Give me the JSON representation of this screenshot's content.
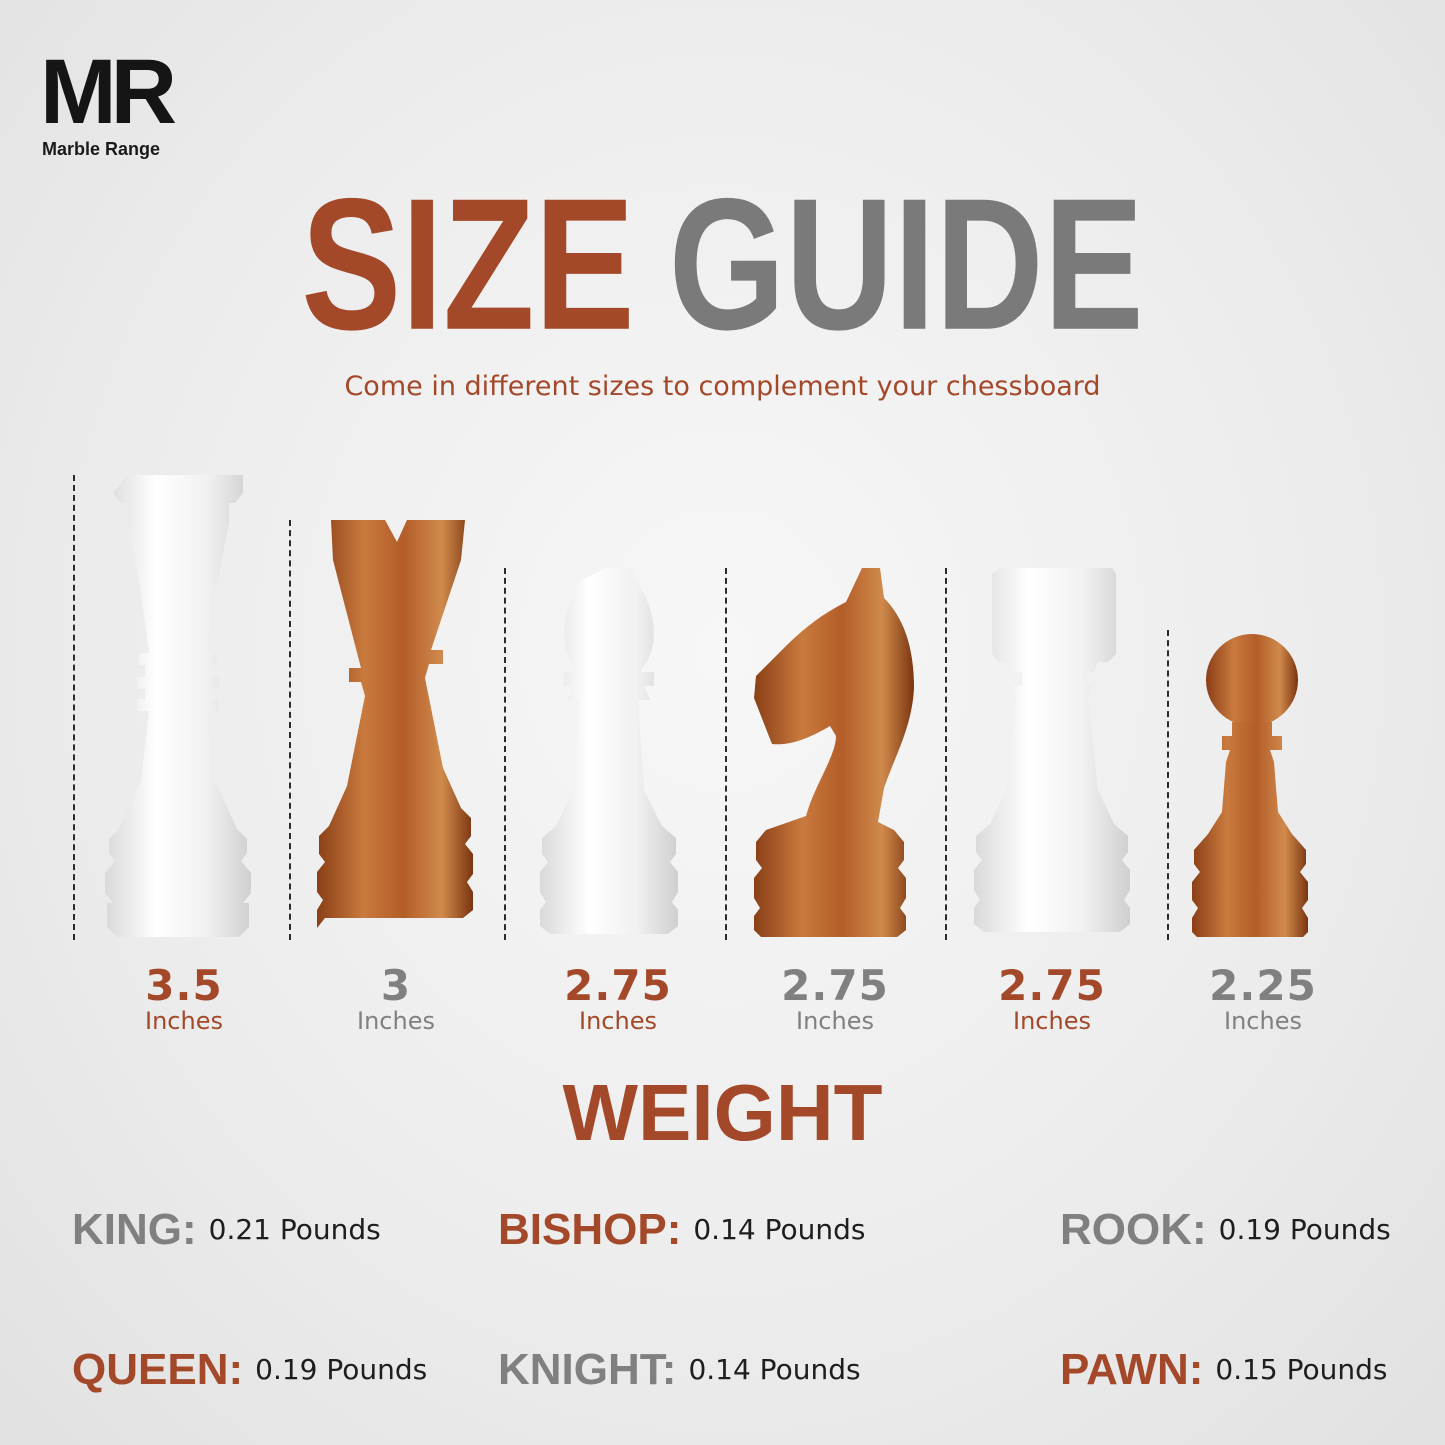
{
  "brand": {
    "logo_mark": "MR",
    "logo_name": "Marble Range"
  },
  "title": {
    "word1": "SIZE",
    "word2": "GUIDE",
    "subtitle": "Come in different sizes to complement your chessboard"
  },
  "colors": {
    "accent": "#a4482a",
    "gray": "#7a7a7a",
    "background": "#ececec"
  },
  "sizes": [
    {
      "piece": "king",
      "marble": "white",
      "value": "3.5",
      "unit": "Inches",
      "color": "accent"
    },
    {
      "piece": "queen",
      "marble": "brown",
      "value": "3",
      "unit": "Inches",
      "color": "gray"
    },
    {
      "piece": "bishop",
      "marble": "white",
      "value": "2.75",
      "unit": "Inches",
      "color": "accent"
    },
    {
      "piece": "knight",
      "marble": "brown",
      "value": "2.75",
      "unit": "Inches",
      "color": "gray"
    },
    {
      "piece": "rook",
      "marble": "white",
      "value": "2.75",
      "unit": "Inches",
      "color": "accent"
    },
    {
      "piece": "pawn",
      "marble": "brown",
      "value": "2.25",
      "unit": "Inches",
      "color": "gray"
    }
  ],
  "weight": {
    "heading": "WEIGHT",
    "items": [
      {
        "name": "KING:",
        "value": "0.21 Pounds"
      },
      {
        "name": "BISHOP:",
        "value": "0.14 Pounds"
      },
      {
        "name": "ROOK:",
        "value": "0.19 Pounds"
      },
      {
        "name": "QUEEN:",
        "value": "0.19 Pounds"
      },
      {
        "name": "KNIGHT:",
        "value": "0.14 Pounds"
      },
      {
        "name": "PAWN:",
        "value": "0.15 Pounds"
      }
    ]
  }
}
